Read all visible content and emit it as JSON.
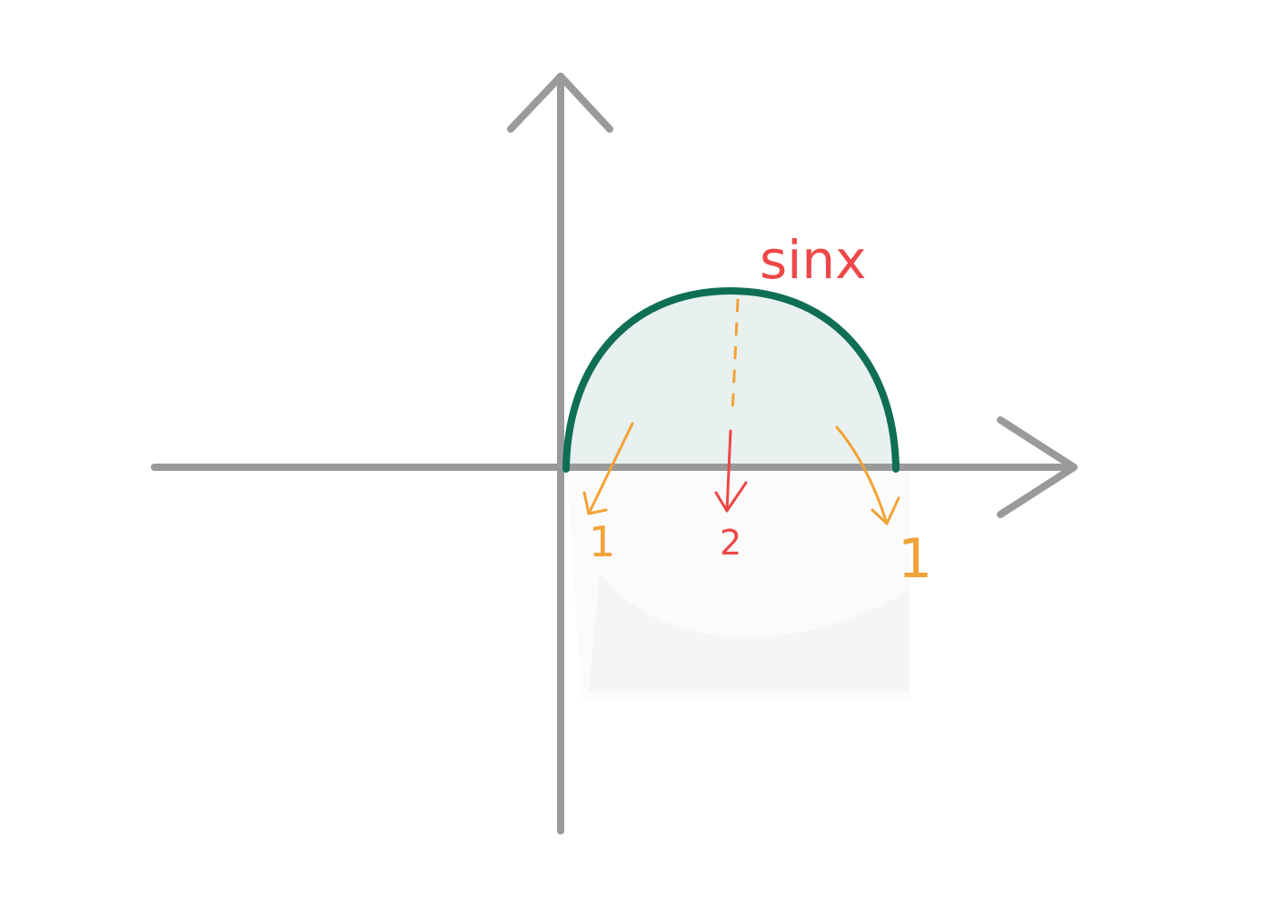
{
  "diagram": {
    "curve_label": "sinx",
    "values": {
      "center": "2",
      "left": "1",
      "right": "1"
    },
    "colors": {
      "axis": "#9a9a9a",
      "curve": "#0f6f55",
      "fill": "#e8f1ef",
      "label": "#ee4747",
      "orange": "#f2a236",
      "reflection": "#f7f7f7"
    }
  }
}
